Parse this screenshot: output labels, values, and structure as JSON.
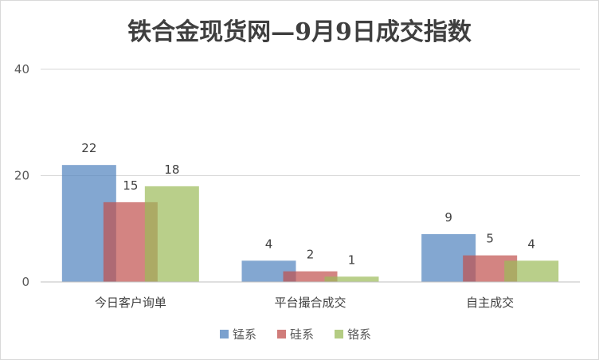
{
  "chart_data": {
    "type": "bar",
    "title": "铁合金现货网—9月9日成交指数",
    "categories": [
      "今日客户询单",
      "平台撮合成交",
      "自主成交"
    ],
    "series": [
      {
        "name": "锰系",
        "color": "#4f81bd",
        "values": [
          22,
          4,
          9
        ]
      },
      {
        "name": "硅系",
        "color": "#c0504d",
        "values": [
          15,
          2,
          5
        ]
      },
      {
        "name": "铬系",
        "color": "#9bbb59",
        "values": [
          18,
          1,
          4
        ]
      }
    ],
    "ylim": [
      0,
      40
    ],
    "yticks": [
      0,
      20,
      40
    ],
    "grid": true,
    "legend_position": "bottom",
    "bar_overlap": true
  }
}
